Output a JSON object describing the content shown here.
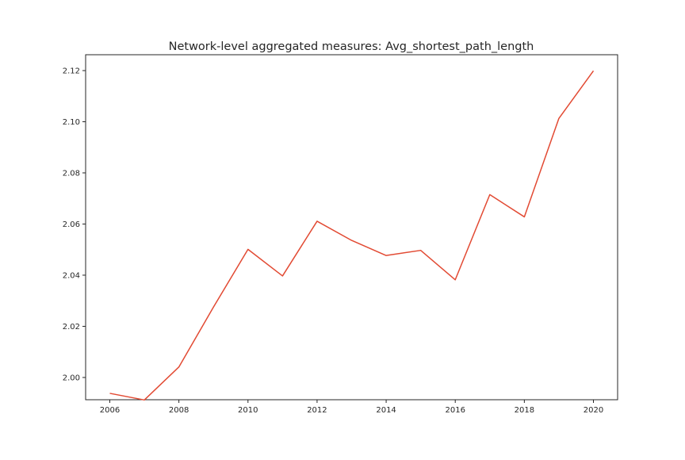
{
  "chart_data": {
    "type": "line",
    "title": "Network-level aggregated measures: Avg_shortest_path_length",
    "xlabel": "",
    "ylabel": "",
    "xlim": [
      2005.3,
      2020.7
    ],
    "ylim": [
      1.9913,
      2.1262
    ],
    "x_ticks": [
      2006,
      2008,
      2010,
      2012,
      2014,
      2016,
      2018,
      2020
    ],
    "y_ticks": [
      2.0,
      2.02,
      2.04,
      2.06,
      2.08,
      2.1,
      2.12
    ],
    "y_tick_labels": [
      "2.00",
      "2.02",
      "2.04",
      "2.06",
      "2.08",
      "2.10",
      "2.12"
    ],
    "grid": false,
    "legend": "none",
    "series": [
      {
        "color": "#e24a33",
        "x": [
          2006,
          2007,
          2008,
          2009,
          2010,
          2011,
          2012,
          2013,
          2014,
          2015,
          2016,
          2017,
          2018,
          2019,
          2020
        ],
        "y": [
          1.9938,
          1.9912,
          2.0041,
          2.0275,
          2.0501,
          2.0397,
          2.0611,
          2.0536,
          2.0477,
          2.0497,
          2.0382,
          2.0715,
          2.0628,
          2.1013,
          2.1199
        ]
      }
    ]
  }
}
